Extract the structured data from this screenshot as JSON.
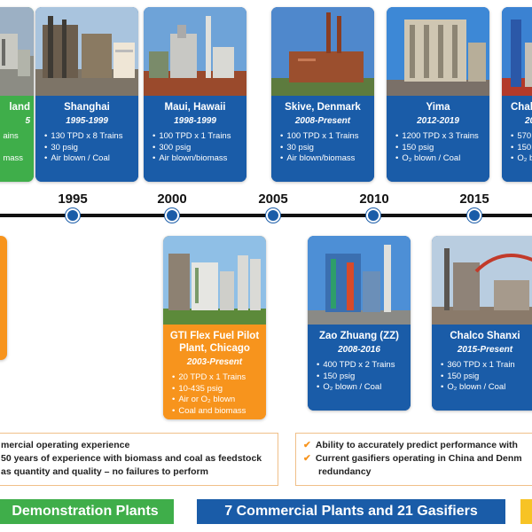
{
  "timeline": {
    "years": [
      "1995",
      "2000",
      "2005",
      "2010",
      "2015"
    ]
  },
  "cards_top": [
    {
      "title": "land",
      "years": "5",
      "bullets": [
        "ains",
        "",
        "mass"
      ],
      "color": "green"
    },
    {
      "title": "Shanghai",
      "years": "1995-1999",
      "bullets": [
        "130 TPD x 8 Trains",
        "30 psig",
        "Air blown / Coal"
      ],
      "color": "blue"
    },
    {
      "title": "Maui, Hawaii",
      "years": "1998-1999",
      "bullets": [
        "100 TPD x 1 Trains",
        "300 psig",
        "Air blown/biomass"
      ],
      "color": "blue"
    },
    {
      "title": "Skive, Denmark",
      "years": "2008-Present",
      "bullets": [
        "100 TPD x 1 Trains",
        "30 psig",
        "Air blown/biomass"
      ],
      "color": "blue"
    },
    {
      "title": "Yima",
      "years": "2012-2019",
      "bullets": [
        "1200 TPD x 3 Trains",
        "150 psig",
        "O₂ blown / Coal"
      ],
      "color": "blue"
    },
    {
      "title": "Chal",
      "years": "20",
      "bullets": [
        "570",
        "150",
        "O₂ b"
      ],
      "color": "blue"
    }
  ],
  "cards_bottom": [
    {
      "title": "GTI Flex Fuel Pilot Plant, Chicago",
      "years": "2003-Present",
      "bullets": [
        "20 TPD x 1 Trains",
        "10-435 psig",
        "Air or O₂ blown",
        "Coal and biomass"
      ],
      "color": "orange"
    },
    {
      "title": "Zao Zhuang (ZZ)",
      "years": "2008-2016",
      "bullets": [
        "400 TPD x 2 Trains",
        "150 psig",
        "O₂ blown / Coal"
      ],
      "color": "blue"
    },
    {
      "title": "Chalco Shanxi",
      "years": "2015-Present",
      "bullets": [
        "360 TPD x 1 Train",
        "150 psig",
        "O₂ blown / Coal"
      ],
      "color": "blue"
    }
  ],
  "info_left": [
    "mercial operating experience",
    "50 years of experience with biomass and coal as feedstock",
    "as quantity and quality – no failures to perform"
  ],
  "info_right": [
    "Ability to accurately predict performance with",
    "Current gasifiers operating in China and Denm",
    "redundancy"
  ],
  "banners": [
    {
      "label": "Demonstration Plants",
      "color": "#3fae4a"
    },
    {
      "label": "7 Commercial Plants and 21 Gasifiers",
      "color": "#1a5ca8"
    },
    {
      "label": "",
      "color": "#f7c325"
    }
  ],
  "icons": [
    "check-icon"
  ]
}
